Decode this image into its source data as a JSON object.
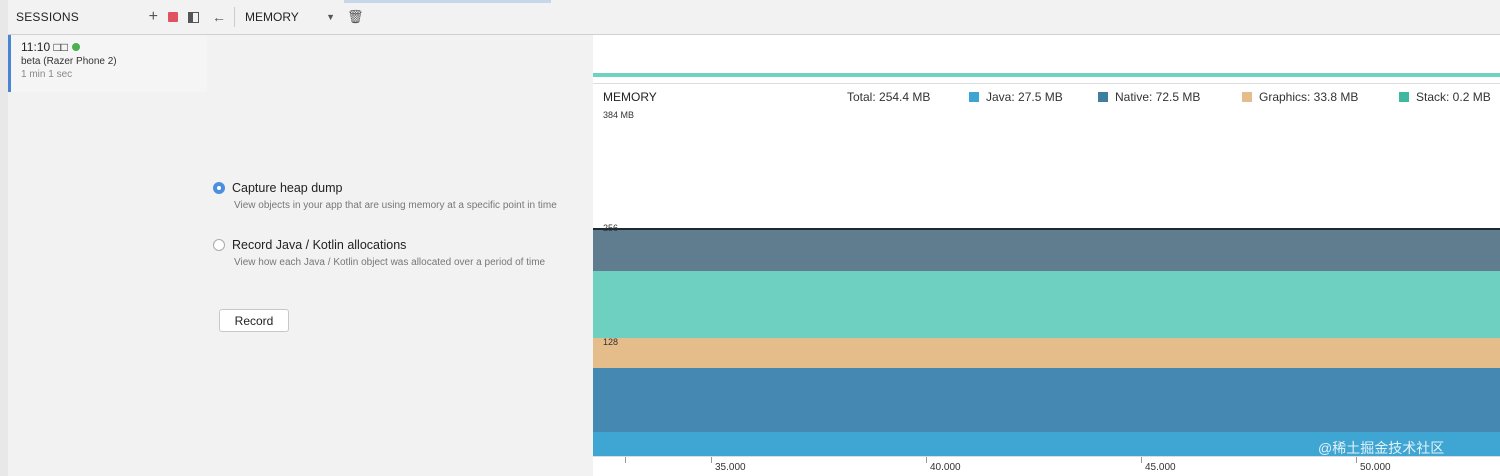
{
  "sessions": {
    "title": "SESSIONS",
    "items": [
      {
        "time": "11:10 □□",
        "device": "beta (Razer Phone 2)",
        "duration": "1 min 1 sec",
        "status_color": "#4caf50"
      }
    ]
  },
  "toolbar": {
    "profiler": "MEMORY"
  },
  "capture_options": [
    {
      "label": "Capture heap dump",
      "description": "View objects in your app that are using memory at a specific point in time",
      "checked": true
    },
    {
      "label": "Record Java / Kotlin allocations",
      "description": "View how each Java / Kotlin object was allocated over a period of time",
      "checked": false
    }
  ],
  "record_label": "Record",
  "memory_chart": {
    "title": "MEMORY",
    "total": "Total: 254.4 MB",
    "legend": [
      {
        "label": "Java: 27.5 MB",
        "color": "#3ea5d2"
      },
      {
        "label": "Native: 72.5 MB",
        "color": "#3e7f9e"
      },
      {
        "label": "Graphics: 33.8 MB",
        "color": "#e4bd8a"
      },
      {
        "label": "Stack: 0.2 MB",
        "color": "#3fb8a0"
      }
    ],
    "y_labels": [
      "384 MB",
      "256",
      "128"
    ],
    "x_ticks": [
      "35.000",
      "40.000",
      "45.000",
      "50.000"
    ]
  },
  "chart_data": {
    "type": "area",
    "title": "MEMORY",
    "y_unit": "MB",
    "ylim": [
      0,
      384
    ],
    "y_ticks": [
      128,
      256,
      384
    ],
    "x_ticks": [
      35,
      40,
      45,
      50
    ],
    "series": [
      {
        "name": "Java",
        "value": 27.5,
        "color": "#3ea5d2"
      },
      {
        "name": "Native",
        "value": 72.5,
        "color": "#3e7f9e"
      },
      {
        "name": "Graphics",
        "value": 33.8,
        "color": "#e4bd8a"
      },
      {
        "name": "Stack",
        "value": 0.2,
        "color": "#3fb8a0"
      }
    ],
    "total": 254.4
  },
  "watermark": "@稀土掘金技术社区"
}
